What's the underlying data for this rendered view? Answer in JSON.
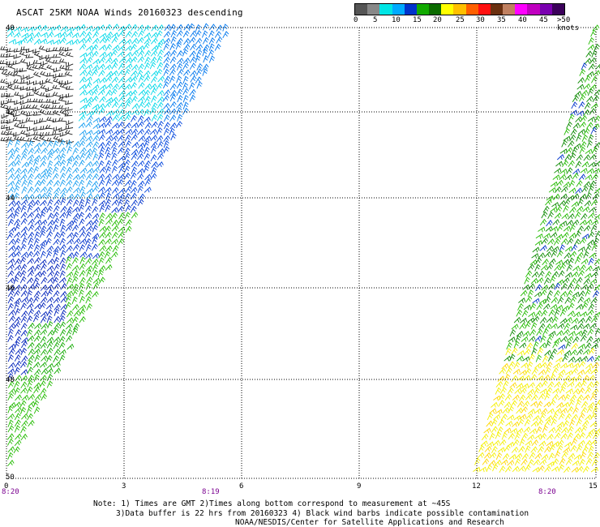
{
  "title": "ASCAT 25KM NOAA Winds 20160323 descending",
  "legend": {
    "colors": [
      "#555555",
      "#888888",
      "#00e5e5",
      "#00aaff",
      "#0033cc",
      "#11aa00",
      "#0b6b00",
      "#ffff00",
      "#ffc000",
      "#ff6000",
      "#ff1010",
      "#6a3010",
      "#c08060",
      "#ff00ff",
      "#c000c0",
      "#7a00b0",
      "#3b005a"
    ],
    "labels": [
      "0",
      "5",
      "10",
      "15",
      "20",
      "25",
      "30",
      "35",
      "40",
      "45",
      ">50 knots"
    ]
  },
  "map": {
    "lat_labels": [
      "40",
      "42",
      "44",
      "46",
      "48",
      "50"
    ],
    "lon_labels": [
      "0",
      "3",
      "6",
      "9",
      "12",
      "15"
    ],
    "time_labels": [
      "8:20",
      "8:19",
      "8:20"
    ],
    "time_color": "#7a0090"
  },
  "notes": {
    "line1": "Note: 1) Times are GMT 2)Times along bottom correspond to measurement at ~45S",
    "line2": "3)Data buffer is 22 hrs from 20160323 4) Black wind barbs indicate possible contamination",
    "line3": "NOAA/NESDIS/Center for Satellite Applications and Research"
  }
}
